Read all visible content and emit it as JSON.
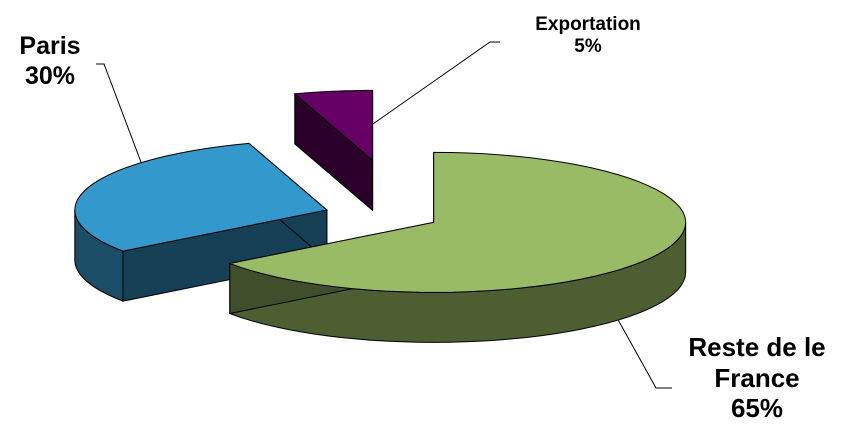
{
  "chart_data": {
    "type": "pie",
    "style": "3d-exploded",
    "slices": [
      {
        "label": "Paris",
        "percent_label": "30%",
        "value": 30,
        "color": "#3399CC"
      },
      {
        "label": "Exportation",
        "percent_label": "5%",
        "value": 5,
        "color": "#660066"
      },
      {
        "label_lines": [
          "Reste de le",
          "France"
        ],
        "percent_label": "65%",
        "value": 65,
        "color": "#99BB66"
      }
    ],
    "side_colors": {
      "Paris": "#1F4E66",
      "Exportation": "#330033",
      "Reste de le France": "#4D5E33"
    },
    "legend": "none"
  }
}
